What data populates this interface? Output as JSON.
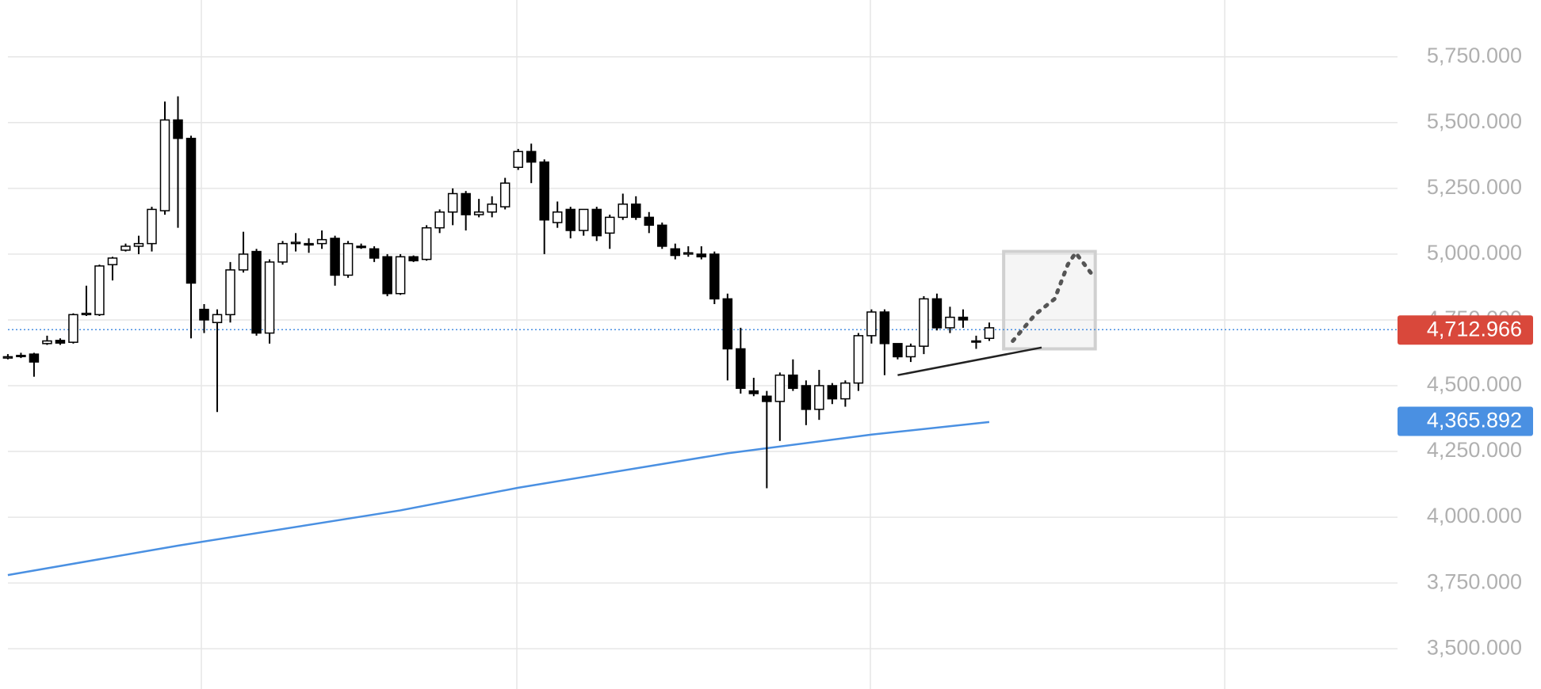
{
  "chart_data": {
    "type": "candlestick",
    "open": [
      4605,
      4612,
      4620,
      4660,
      4672,
      4665,
      4770,
      4770,
      4960,
      5015,
      5030,
      5040,
      5165,
      5510,
      5440,
      4790,
      4740,
      4770,
      4940,
      5010,
      4700,
      4970,
      5040,
      5040,
      5040,
      5060,
      4920,
      5030,
      5020,
      4990,
      4850,
      4990,
      4980,
      5100,
      5160,
      5230,
      5150,
      5160,
      5180,
      5330,
      5390,
      5350,
      5120,
      5170,
      5090,
      5170,
      5080,
      5140,
      5190,
      5140,
      5110,
      5020,
      5000,
      5000,
      5000,
      4830,
      4640,
      4480,
      4460,
      4440,
      4540,
      4500,
      4410,
      4500,
      4450,
      4510,
      4690,
      4780,
      4660,
      4610,
      4650,
      4830,
      4720,
      4760,
      4670,
      4680
    ],
    "high": [
      4620,
      4625,
      4625,
      4690,
      4680,
      4775,
      4880,
      4960,
      4990,
      5040,
      5070,
      5180,
      5580,
      5600,
      5450,
      4810,
      4790,
      4970,
      5085,
      5020,
      4980,
      5050,
      5080,
      5060,
      5090,
      5070,
      5050,
      5040,
      5030,
      5000,
      5000,
      4995,
      5110,
      5170,
      5250,
      5240,
      5210,
      5220,
      5290,
      5400,
      5420,
      5360,
      5200,
      5180,
      5170,
      5180,
      5150,
      5230,
      5220,
      5160,
      5120,
      5040,
      5030,
      5030,
      5010,
      4850,
      4720,
      4530,
      4480,
      4550,
      4600,
      4520,
      4560,
      4510,
      4520,
      4700,
      4790,
      4790,
      4660,
      4660,
      4840,
      4850,
      4800,
      4790,
      4690,
      4740
    ],
    "low": [
      4600,
      4605,
      4534,
      4655,
      4655,
      4660,
      4765,
      4765,
      4900,
      5010,
      5000,
      5010,
      5150,
      5100,
      4680,
      4700,
      4400,
      4740,
      4930,
      4690,
      4660,
      4960,
      5010,
      5005,
      5020,
      4880,
      4910,
      5020,
      4970,
      4840,
      4845,
      4970,
      4975,
      5080,
      5110,
      5090,
      5140,
      5140,
      5170,
      5320,
      5270,
      5000,
      5100,
      5060,
      5070,
      5050,
      5020,
      5130,
      5130,
      5080,
      5020,
      4980,
      4990,
      4980,
      4810,
      4520,
      4470,
      4460,
      4110,
      4290,
      4480,
      4350,
      4370,
      4430,
      4420,
      4480,
      4660,
      4540,
      4600,
      4590,
      4620,
      4710,
      4700,
      4720,
      4640,
      4670
    ],
    "close": [
      4610,
      4615,
      4590,
      4670,
      4662,
      4770,
      4775,
      4955,
      4985,
      5030,
      5040,
      5170,
      5510,
      5440,
      4890,
      4750,
      4770,
      4940,
      5000,
      4700,
      4970,
      5040,
      5045,
      5035,
      5055,
      4920,
      5040,
      5025,
      4985,
      4850,
      4990,
      4975,
      5100,
      5160,
      5230,
      5150,
      5160,
      5190,
      5270,
      5390,
      5350,
      5130,
      5160,
      5090,
      5170,
      5070,
      5140,
      5190,
      5140,
      5110,
      5030,
      4995,
      5005,
      4990,
      4830,
      4640,
      4490,
      4470,
      4440,
      4540,
      4490,
      4410,
      4500,
      4450,
      4510,
      4690,
      4780,
      4660,
      4610,
      4650,
      4830,
      4720,
      4760,
      4750,
      4670,
      4720
    ],
    "up_color": "#ffffff",
    "down_color": "#000000",
    "xlim": [
      -0.6,
      106.2
    ],
    "ylim": [
      3347,
      5966
    ],
    "yticks": [
      {
        "value": 3500,
        "label": "3,500.000"
      },
      {
        "value": 3750,
        "label": "3,750.000"
      },
      {
        "value": 4000,
        "label": "4,000.000"
      },
      {
        "value": 4250,
        "label": "4,250.000"
      },
      {
        "value": 4500,
        "label": "4,500.000"
      },
      {
        "value": 4750,
        "label": "4,750.000"
      },
      {
        "value": 5000,
        "label": "5,000.000"
      },
      {
        "value": 5250,
        "label": "5,250.000"
      },
      {
        "value": 5500,
        "label": "5,500.000"
      },
      {
        "value": 5750,
        "label": "5,750.000"
      }
    ],
    "grid": true,
    "last_price": {
      "value": 4712.966,
      "label": "4,712.966",
      "color": "#d9483b"
    },
    "ma": {
      "color": "#4a90e2",
      "x": [
        0,
        13,
        30,
        39,
        55,
        66,
        75
      ],
      "values": [
        3780,
        3892,
        4026,
        4112,
        4243,
        4314,
        4362
      ],
      "last": {
        "value": 4365.892,
        "label": "4,365.892"
      }
    },
    "trendline": {
      "color": "#222222",
      "x": [
        68,
        79
      ],
      "values": [
        4540,
        4645
      ]
    },
    "projection": {
      "color": "#555555",
      "x": [
        76.8,
        78.5,
        80,
        81,
        81.6,
        82.9
      ],
      "values": [
        4670,
        4770,
        4830,
        4960,
        5005,
        4920
      ]
    },
    "box": {
      "x": [
        76.1,
        83.1
      ],
      "values": [
        4640,
        5010
      ]
    }
  }
}
